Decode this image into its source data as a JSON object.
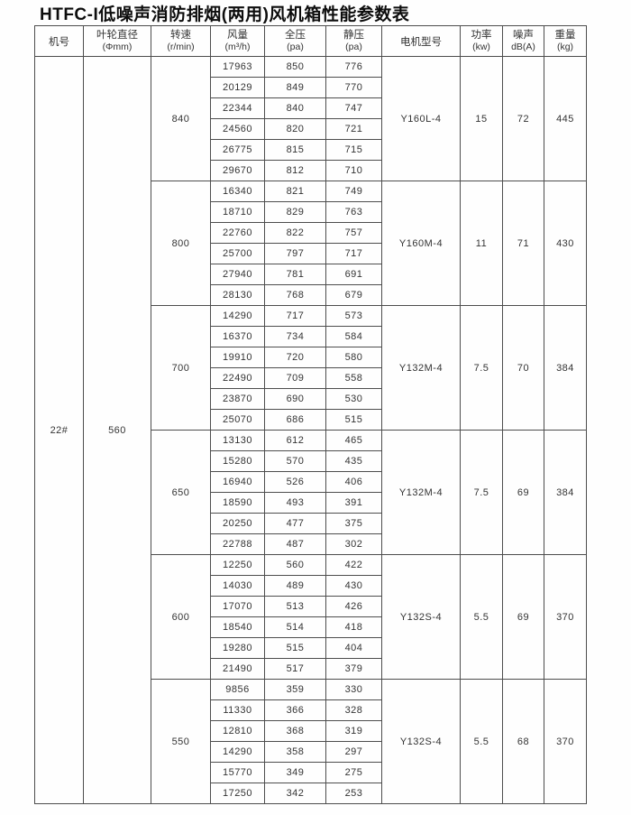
{
  "title": "HTFC-I低噪声消防排烟(两用)风机箱性能参数表",
  "table": {
    "headers": [
      {
        "key": "machine-no",
        "label": "机号",
        "sub": ""
      },
      {
        "key": "impeller-diameter",
        "label": "叶轮直径",
        "sub": "(Φmm)"
      },
      {
        "key": "speed",
        "label": "转速",
        "sub": "(r/min)"
      },
      {
        "key": "flow",
        "label": "风量",
        "sub": "(m³/h)"
      },
      {
        "key": "total-pressure",
        "label": "全压",
        "sub": "(pa)"
      },
      {
        "key": "static-pressure",
        "label": "静压",
        "sub": "(pa)"
      },
      {
        "key": "motor-model",
        "label": "电机型号",
        "sub": ""
      },
      {
        "key": "power",
        "label": "功率",
        "sub": "(kw)"
      },
      {
        "key": "noise",
        "label": "噪声",
        "sub": "dB(A)"
      },
      {
        "key": "weight",
        "label": "重量",
        "sub": "(kg)"
      }
    ],
    "machine_no": "22#",
    "impeller_diameter": "560",
    "groups": [
      {
        "speed": "840",
        "motor": "Y160L-4",
        "power": "15",
        "noise": "72",
        "weight": "445",
        "rows": [
          {
            "flow": "17963",
            "total_pressure": "850",
            "static_pressure": "776"
          },
          {
            "flow": "20129",
            "total_pressure": "849",
            "static_pressure": "770"
          },
          {
            "flow": "22344",
            "total_pressure": "840",
            "static_pressure": "747"
          },
          {
            "flow": "24560",
            "total_pressure": "820",
            "static_pressure": "721"
          },
          {
            "flow": "26775",
            "total_pressure": "815",
            "static_pressure": "715"
          },
          {
            "flow": "29670",
            "total_pressure": "812",
            "static_pressure": "710"
          }
        ]
      },
      {
        "speed": "800",
        "motor": "Y160M-4",
        "power": "11",
        "noise": "71",
        "weight": "430",
        "rows": [
          {
            "flow": "16340",
            "total_pressure": "821",
            "static_pressure": "749"
          },
          {
            "flow": "18710",
            "total_pressure": "829",
            "static_pressure": "763"
          },
          {
            "flow": "22760",
            "total_pressure": "822",
            "static_pressure": "757"
          },
          {
            "flow": "25700",
            "total_pressure": "797",
            "static_pressure": "717"
          },
          {
            "flow": "27940",
            "total_pressure": "781",
            "static_pressure": "691"
          },
          {
            "flow": "28130",
            "total_pressure": "768",
            "static_pressure": "679"
          }
        ]
      },
      {
        "speed": "700",
        "motor": "Y132M-4",
        "power": "7.5",
        "noise": "70",
        "weight": "384",
        "rows": [
          {
            "flow": "14290",
            "total_pressure": "717",
            "static_pressure": "573"
          },
          {
            "flow": "16370",
            "total_pressure": "734",
            "static_pressure": "584"
          },
          {
            "flow": "19910",
            "total_pressure": "720",
            "static_pressure": "580"
          },
          {
            "flow": "22490",
            "total_pressure": "709",
            "static_pressure": "558"
          },
          {
            "flow": "23870",
            "total_pressure": "690",
            "static_pressure": "530"
          },
          {
            "flow": "25070",
            "total_pressure": "686",
            "static_pressure": "515"
          }
        ]
      },
      {
        "speed": "650",
        "motor": "Y132M-4",
        "power": "7.5",
        "noise": "69",
        "weight": "384",
        "rows": [
          {
            "flow": "13130",
            "total_pressure": "612",
            "static_pressure": "465"
          },
          {
            "flow": "15280",
            "total_pressure": "570",
            "static_pressure": "435"
          },
          {
            "flow": "16940",
            "total_pressure": "526",
            "static_pressure": "406"
          },
          {
            "flow": "18590",
            "total_pressure": "493",
            "static_pressure": "391"
          },
          {
            "flow": "20250",
            "total_pressure": "477",
            "static_pressure": "375"
          },
          {
            "flow": "22788",
            "total_pressure": "487",
            "static_pressure": "302"
          }
        ]
      },
      {
        "speed": "600",
        "motor": "Y132S-4",
        "power": "5.5",
        "noise": "69",
        "weight": "370",
        "rows": [
          {
            "flow": "12250",
            "total_pressure": "560",
            "static_pressure": "422"
          },
          {
            "flow": "14030",
            "total_pressure": "489",
            "static_pressure": "430"
          },
          {
            "flow": "17070",
            "total_pressure": "513",
            "static_pressure": "426"
          },
          {
            "flow": "18540",
            "total_pressure": "514",
            "static_pressure": "418"
          },
          {
            "flow": "19280",
            "total_pressure": "515",
            "static_pressure": "404"
          },
          {
            "flow": "21490",
            "total_pressure": "517",
            "static_pressure": "379"
          }
        ]
      },
      {
        "speed": "550",
        "motor": "Y132S-4",
        "power": "5.5",
        "noise": "68",
        "weight": "370",
        "rows": [
          {
            "flow": "9856",
            "total_pressure": "359",
            "static_pressure": "330"
          },
          {
            "flow": "11330",
            "total_pressure": "366",
            "static_pressure": "328"
          },
          {
            "flow": "12810",
            "total_pressure": "368",
            "static_pressure": "319"
          },
          {
            "flow": "14290",
            "total_pressure": "358",
            "static_pressure": "297"
          },
          {
            "flow": "15770",
            "total_pressure": "349",
            "static_pressure": "275"
          },
          {
            "flow": "17250",
            "total_pressure": "342",
            "static_pressure": "253"
          }
        ]
      }
    ]
  }
}
